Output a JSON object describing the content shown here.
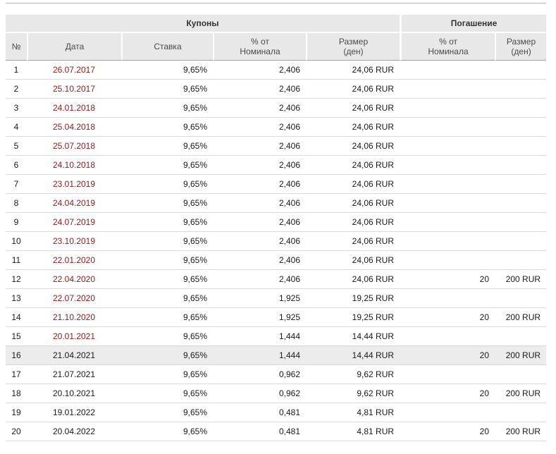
{
  "chart_data": {
    "type": "table",
    "group_headers": [
      {
        "label": "Купоны",
        "colspan": 5
      },
      {
        "label": "Погашение",
        "colspan": 2
      }
    ],
    "columns": [
      "№",
      "Дата",
      "Ставка",
      "% от\nНоминала",
      "Размер\n(ден)",
      "% от\nНоминала",
      "Размер\n(ден)"
    ],
    "rows": [
      {
        "n": "1",
        "date": "26.07.2017",
        "date_link": true,
        "rate": "9,65%",
        "nominal_pct": "2,406",
        "amount": "24,06 RUR",
        "redemption_pct": "",
        "redemption_amount": "",
        "highlight": false
      },
      {
        "n": "2",
        "date": "25.10.2017",
        "date_link": true,
        "rate": "9,65%",
        "nominal_pct": "2,406",
        "amount": "24,06 RUR",
        "redemption_pct": "",
        "redemption_amount": "",
        "highlight": false
      },
      {
        "n": "3",
        "date": "24.01.2018",
        "date_link": true,
        "rate": "9,65%",
        "nominal_pct": "2,406",
        "amount": "24,06 RUR",
        "redemption_pct": "",
        "redemption_amount": "",
        "highlight": false
      },
      {
        "n": "4",
        "date": "25.04.2018",
        "date_link": true,
        "rate": "9,65%",
        "nominal_pct": "2,406",
        "amount": "24,06 RUR",
        "redemption_pct": "",
        "redemption_amount": "",
        "highlight": false
      },
      {
        "n": "5",
        "date": "25.07.2018",
        "date_link": true,
        "rate": "9,65%",
        "nominal_pct": "2,406",
        "amount": "24,06 RUR",
        "redemption_pct": "",
        "redemption_amount": "",
        "highlight": false
      },
      {
        "n": "6",
        "date": "24.10.2018",
        "date_link": true,
        "rate": "9,65%",
        "nominal_pct": "2,406",
        "amount": "24,06 RUR",
        "redemption_pct": "",
        "redemption_amount": "",
        "highlight": false
      },
      {
        "n": "7",
        "date": "23.01.2019",
        "date_link": true,
        "rate": "9,65%",
        "nominal_pct": "2,406",
        "amount": "24,06 RUR",
        "redemption_pct": "",
        "redemption_amount": "",
        "highlight": false
      },
      {
        "n": "8",
        "date": "24.04.2019",
        "date_link": true,
        "rate": "9,65%",
        "nominal_pct": "2,406",
        "amount": "24,06 RUR",
        "redemption_pct": "",
        "redemption_amount": "",
        "highlight": false
      },
      {
        "n": "9",
        "date": "24.07.2019",
        "date_link": true,
        "rate": "9,65%",
        "nominal_pct": "2,406",
        "amount": "24,06 RUR",
        "redemption_pct": "",
        "redemption_amount": "",
        "highlight": false
      },
      {
        "n": "10",
        "date": "23.10.2019",
        "date_link": true,
        "rate": "9,65%",
        "nominal_pct": "2,406",
        "amount": "24,06 RUR",
        "redemption_pct": "",
        "redemption_amount": "",
        "highlight": false
      },
      {
        "n": "11",
        "date": "22.01.2020",
        "date_link": true,
        "rate": "9,65%",
        "nominal_pct": "2,406",
        "amount": "24,06 RUR",
        "redemption_pct": "",
        "redemption_amount": "",
        "highlight": false
      },
      {
        "n": "12",
        "date": "22.04.2020",
        "date_link": true,
        "rate": "9,65%",
        "nominal_pct": "2,406",
        "amount": "24,06 RUR",
        "redemption_pct": "20",
        "redemption_amount": "200 RUR",
        "highlight": false
      },
      {
        "n": "13",
        "date": "22.07.2020",
        "date_link": true,
        "rate": "9,65%",
        "nominal_pct": "1,925",
        "amount": "19,25 RUR",
        "redemption_pct": "",
        "redemption_amount": "",
        "highlight": false
      },
      {
        "n": "14",
        "date": "21.10.2020",
        "date_link": true,
        "rate": "9,65%",
        "nominal_pct": "1,925",
        "amount": "19,25 RUR",
        "redemption_pct": "20",
        "redemption_amount": "200 RUR",
        "highlight": false
      },
      {
        "n": "15",
        "date": "20.01.2021",
        "date_link": true,
        "rate": "9,65%",
        "nominal_pct": "1,444",
        "amount": "14,44 RUR",
        "redemption_pct": "",
        "redemption_amount": "",
        "highlight": false
      },
      {
        "n": "16",
        "date": "21.04.2021",
        "date_link": false,
        "rate": "9,65%",
        "nominal_pct": "1,444",
        "amount": "14,44 RUR",
        "redemption_pct": "20",
        "redemption_amount": "200 RUR",
        "highlight": true
      },
      {
        "n": "17",
        "date": "21.07.2021",
        "date_link": false,
        "rate": "9,65%",
        "nominal_pct": "0,962",
        "amount": "9,62 RUR",
        "redemption_pct": "",
        "redemption_amount": "",
        "highlight": false
      },
      {
        "n": "18",
        "date": "20.10.2021",
        "date_link": false,
        "rate": "9,65%",
        "nominal_pct": "0,962",
        "amount": "9,62 RUR",
        "redemption_pct": "20",
        "redemption_amount": "200 RUR",
        "highlight": false
      },
      {
        "n": "19",
        "date": "19.01.2022",
        "date_link": false,
        "rate": "9,65%",
        "nominal_pct": "0,481",
        "amount": "4,81 RUR",
        "redemption_pct": "",
        "redemption_amount": "",
        "highlight": false
      },
      {
        "n": "20",
        "date": "20.04.2022",
        "date_link": false,
        "rate": "9,65%",
        "nominal_pct": "0,481",
        "amount": "4,81 RUR",
        "redemption_pct": "20",
        "redemption_amount": "200 RUR",
        "highlight": false
      }
    ]
  },
  "colors": {
    "date_link": "#8e1b1b",
    "header_bg": "#e8e8e8",
    "highlight_bg": "#ececec",
    "row_border": "#d9d9d9",
    "header_border": "#9f9f9f",
    "top_rule": "#b5b5b5"
  }
}
